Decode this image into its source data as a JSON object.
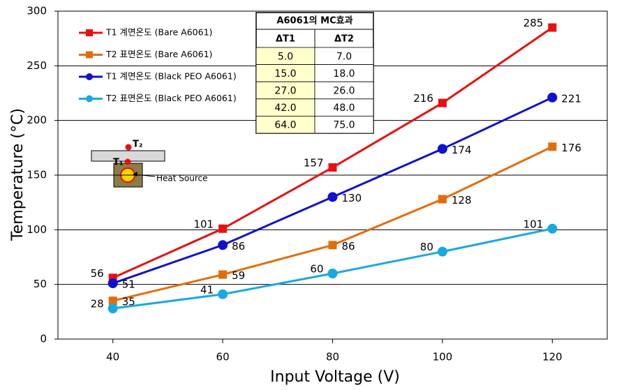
{
  "chart_data": {
    "type": "line",
    "x_label": "Input Voltage  (V)",
    "y_label": "Temperature (°C)",
    "x": [
      40,
      60,
      80,
      100,
      120
    ],
    "series": [
      {
        "name": "T1 계면온도 (Bare A6061)",
        "color": "#e81010",
        "marker": "square",
        "values": [
          56,
          101,
          157,
          216,
          285
        ]
      },
      {
        "name": "T2 표면온도 (Bare A6061)",
        "color": "#e36c0a",
        "marker": "square",
        "values": [
          35,
          59,
          86,
          128,
          176
        ]
      },
      {
        "name": "T1 계면온도 (Black PEO  A6061)",
        "color": "#1010d0",
        "marker": "circle",
        "values": [
          51,
          86,
          130,
          174,
          221
        ]
      },
      {
        "name": "T2 표면온도 (Black PEO  A6061)",
        "color": "#1aa8e0",
        "marker": "circle",
        "values": [
          28,
          41,
          60,
          80,
          101
        ]
      }
    ],
    "xlim": [
      30,
      130
    ],
    "xticks": [
      40,
      60,
      80,
      100,
      120
    ],
    "ylim": [
      0,
      300
    ],
    "yticks": [
      0,
      50,
      100,
      150,
      200,
      250,
      300
    ],
    "grid": true,
    "legend": "upper left"
  },
  "inset_table": {
    "title": "A6061의 MC효과",
    "headers": [
      "ΔT1",
      "ΔT2"
    ],
    "rows": [
      [
        "5.0",
        "7.0"
      ],
      [
        "15.0",
        "18.0"
      ],
      [
        "27.0",
        "26.0"
      ],
      [
        "42.0",
        "48.0"
      ],
      [
        "64.0",
        "75.0"
      ]
    ]
  },
  "diagram": {
    "t2": "T₂",
    "t1": "T₁",
    "heat_source": "Heat Source"
  }
}
